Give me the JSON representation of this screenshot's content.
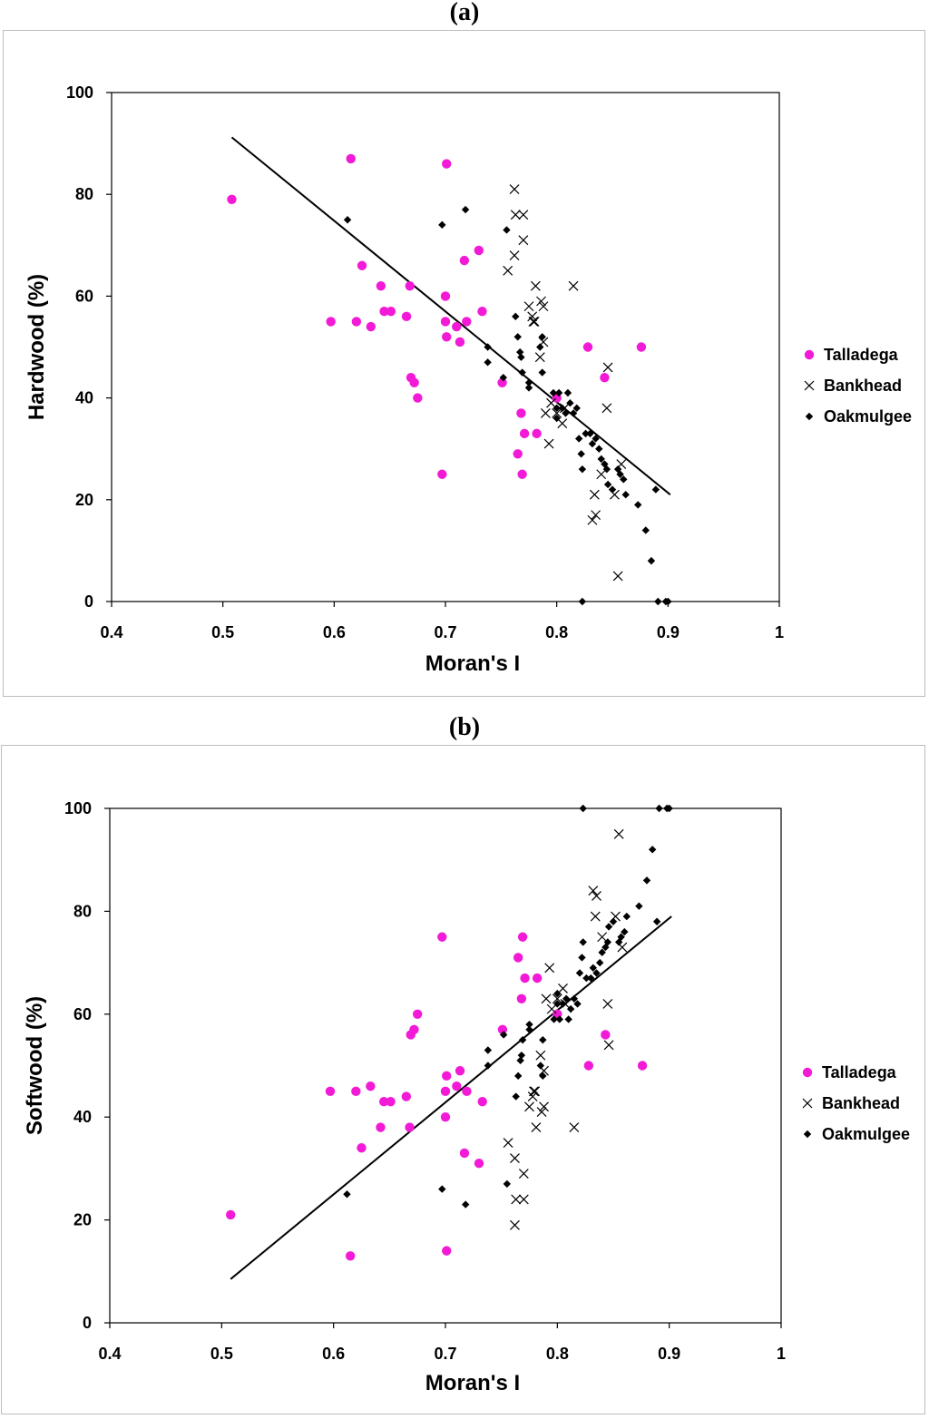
{
  "colors": {
    "talladega": "#f21ad6",
    "line": "#000000",
    "marker": "#000000"
  },
  "chart_data": [
    {
      "panel_label": "(a)",
      "type": "scatter",
      "xlabel": "Moran's I",
      "ylabel": "Hardwood (%)",
      "xlim": [
        0.4,
        1
      ],
      "ylim": [
        0,
        100
      ],
      "x_ticks": [
        "0.4",
        "0.5",
        "0.6",
        "0.7",
        "0.8",
        "0.9",
        "1"
      ],
      "y_ticks": [
        "0",
        "20",
        "40",
        "60",
        "80",
        "100"
      ],
      "legend_position": "right",
      "trendline": {
        "x": [
          0.508,
          0.902
        ],
        "y": [
          91.2,
          21.0
        ]
      },
      "series": [
        {
          "name": "Talladega",
          "marker": "circle",
          "x": [
            0.508,
            0.597,
            0.615,
            0.62,
            0.625,
            0.633,
            0.642,
            0.645,
            0.651,
            0.665,
            0.668,
            0.669,
            0.672,
            0.675,
            0.697,
            0.7,
            0.7,
            0.701,
            0.701,
            0.71,
            0.713,
            0.717,
            0.719,
            0.73,
            0.733,
            0.751,
            0.765,
            0.768,
            0.769,
            0.771,
            0.782,
            0.8,
            0.828,
            0.843,
            0.876
          ],
          "y": [
            79,
            55,
            87,
            55,
            66,
            54,
            62,
            57,
            57,
            56,
            62,
            44,
            43,
            40,
            25,
            60,
            55,
            52,
            86,
            54,
            51,
            67,
            55,
            69,
            57,
            43,
            29,
            37,
            25,
            33,
            33,
            40,
            50,
            44,
            50
          ]
        },
        {
          "name": "Bankhead",
          "marker": "x",
          "x": [
            0.756,
            0.762,
            0.762,
            0.763,
            0.77,
            0.77,
            0.775,
            0.778,
            0.779,
            0.78,
            0.781,
            0.785,
            0.786,
            0.788,
            0.788,
            0.79,
            0.793,
            0.795,
            0.8,
            0.805,
            0.807,
            0.815,
            0.832,
            0.834,
            0.835,
            0.84,
            0.845,
            0.846,
            0.852,
            0.855,
            0.858
          ],
          "y": [
            65,
            68,
            81,
            76,
            76,
            71,
            58,
            56,
            55,
            55,
            62,
            48,
            59,
            58,
            51,
            37,
            31,
            39,
            37,
            35,
            38,
            62,
            16,
            21,
            17,
            25,
            38,
            46,
            21,
            5,
            27
          ]
        },
        {
          "name": "Oakmulgee",
          "marker": "diamond",
          "x": [
            0.612,
            0.697,
            0.718,
            0.738,
            0.738,
            0.752,
            0.755,
            0.763,
            0.765,
            0.767,
            0.768,
            0.769,
            0.775,
            0.775,
            0.785,
            0.787,
            0.787,
            0.797,
            0.8,
            0.8,
            0.802,
            0.805,
            0.808,
            0.81,
            0.812,
            0.815,
            0.818,
            0.82,
            0.822,
            0.823,
            0.826,
            0.83,
            0.832,
            0.835,
            0.838,
            0.84,
            0.843,
            0.845,
            0.846,
            0.85,
            0.855,
            0.857,
            0.86,
            0.862,
            0.873,
            0.88,
            0.885,
            0.889,
            0.891,
            0.898,
            0.9,
            0.823
          ],
          "y": [
            75,
            74,
            77,
            50,
            47,
            44,
            73,
            56,
            52,
            49,
            48,
            45,
            43,
            42,
            50,
            52,
            45,
            41,
            36,
            38,
            41,
            38,
            37,
            41,
            39,
            37,
            38,
            32,
            29,
            26,
            33,
            33,
            31,
            32,
            30,
            28,
            27,
            26,
            23,
            22,
            26,
            25,
            24,
            21,
            19,
            14,
            8,
            22,
            0,
            0,
            0,
            0
          ]
        }
      ]
    },
    {
      "panel_label": "(b)",
      "type": "scatter",
      "xlabel": "Moran's I",
      "ylabel": "Softwood (%)",
      "xlim": [
        0.4,
        1
      ],
      "ylim": [
        0,
        100
      ],
      "x_ticks": [
        "0.4",
        "0.5",
        "0.6",
        "0.7",
        "0.8",
        "0.9",
        "1"
      ],
      "y_ticks": [
        "0",
        "20",
        "40",
        "60",
        "80",
        "100"
      ],
      "legend_position": "right",
      "trendline": {
        "x": [
          0.508,
          0.902
        ],
        "y": [
          8.5,
          79.0
        ]
      },
      "series": [
        {
          "name": "Talladega",
          "marker": "circle",
          "x": [
            0.508,
            0.597,
            0.615,
            0.62,
            0.625,
            0.633,
            0.642,
            0.645,
            0.651,
            0.665,
            0.668,
            0.669,
            0.672,
            0.675,
            0.697,
            0.7,
            0.7,
            0.701,
            0.701,
            0.71,
            0.713,
            0.717,
            0.719,
            0.73,
            0.733,
            0.751,
            0.765,
            0.768,
            0.769,
            0.771,
            0.782,
            0.8,
            0.828,
            0.843,
            0.876
          ],
          "y": [
            21,
            45,
            13,
            45,
            34,
            46,
            38,
            43,
            43,
            44,
            38,
            56,
            57,
            60,
            75,
            40,
            45,
            48,
            14,
            46,
            49,
            33,
            45,
            31,
            43,
            57,
            71,
            63,
            75,
            67,
            67,
            60,
            50,
            56,
            50
          ]
        },
        {
          "name": "Bankhead",
          "marker": "x",
          "x": [
            0.756,
            0.762,
            0.762,
            0.763,
            0.77,
            0.77,
            0.775,
            0.778,
            0.779,
            0.78,
            0.781,
            0.785,
            0.786,
            0.788,
            0.788,
            0.79,
            0.793,
            0.795,
            0.8,
            0.805,
            0.807,
            0.815,
            0.832,
            0.834,
            0.835,
            0.84,
            0.845,
            0.846,
            0.852,
            0.855,
            0.858
          ],
          "y": [
            35,
            32,
            19,
            24,
            24,
            29,
            42,
            44,
            45,
            45,
            38,
            52,
            41,
            42,
            49,
            63,
            69,
            61,
            63,
            65,
            62,
            38,
            84,
            79,
            83,
            75,
            62,
            54,
            79,
            95,
            73
          ]
        },
        {
          "name": "Oakmulgee",
          "marker": "diamond",
          "x": [
            0.612,
            0.697,
            0.718,
            0.738,
            0.738,
            0.752,
            0.755,
            0.763,
            0.765,
            0.767,
            0.768,
            0.769,
            0.775,
            0.775,
            0.785,
            0.787,
            0.787,
            0.797,
            0.8,
            0.8,
            0.802,
            0.805,
            0.808,
            0.81,
            0.812,
            0.815,
            0.818,
            0.82,
            0.822,
            0.823,
            0.826,
            0.83,
            0.832,
            0.835,
            0.838,
            0.84,
            0.843,
            0.845,
            0.846,
            0.85,
            0.855,
            0.857,
            0.86,
            0.862,
            0.873,
            0.88,
            0.885,
            0.889,
            0.891,
            0.898,
            0.9,
            0.823
          ],
          "y": [
            25,
            26,
            23,
            50,
            53,
            56,
            27,
            44,
            48,
            51,
            52,
            55,
            57,
            58,
            50,
            48,
            55,
            59,
            64,
            62,
            59,
            62,
            63,
            59,
            61,
            63,
            62,
            68,
            71,
            74,
            67,
            67,
            69,
            68,
            70,
            72,
            73,
            74,
            77,
            78,
            74,
            75,
            76,
            79,
            81,
            86,
            92,
            78,
            100,
            100,
            100,
            100
          ]
        }
      ]
    }
  ]
}
